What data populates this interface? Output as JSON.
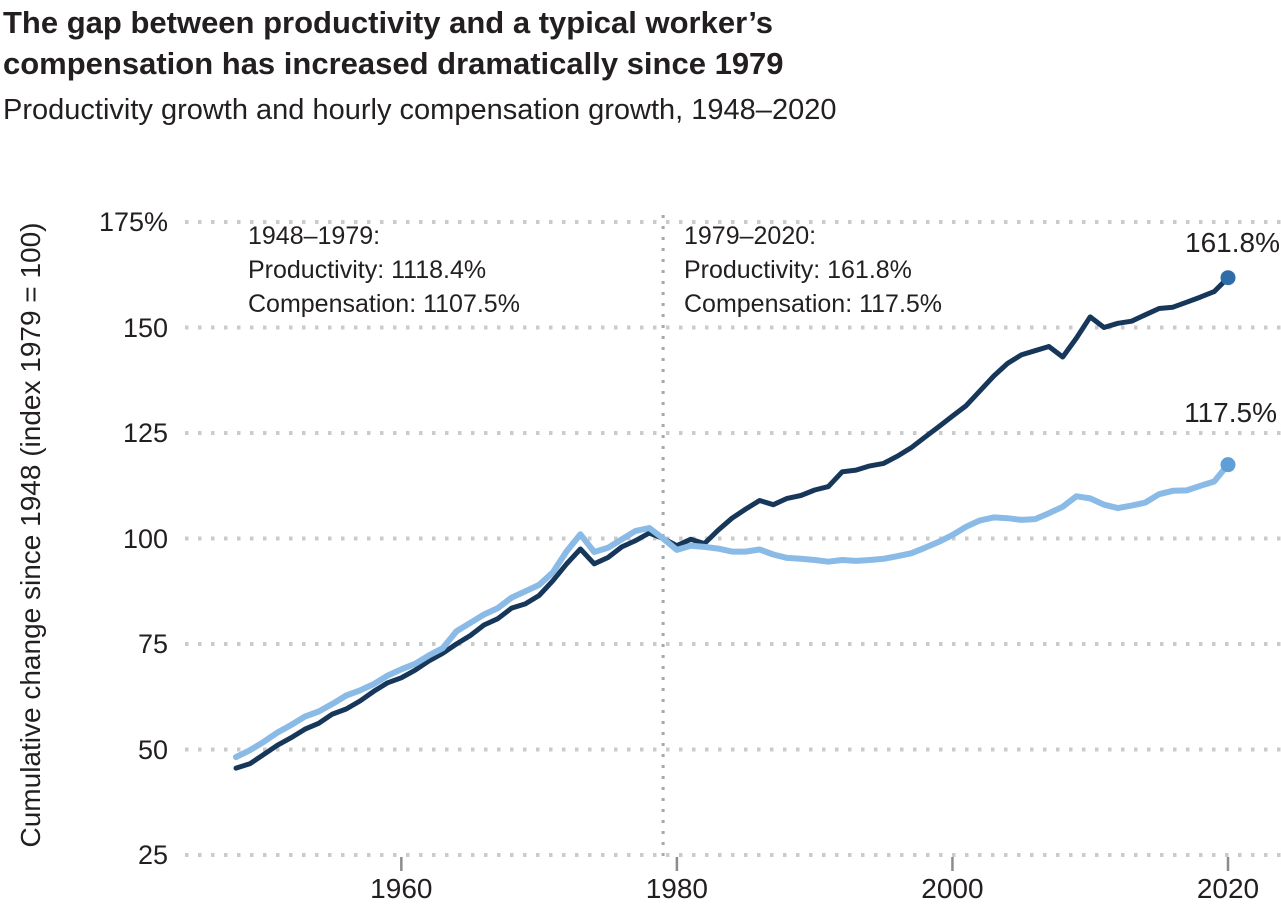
{
  "header": {
    "title_line1": "The gap between productivity and a typical worker’s",
    "title_line2": "compensation has increased dramatically since 1979",
    "subtitle": "Productivity growth and hourly compensation growth, 1948–2020"
  },
  "y_axis": {
    "title": "Cumulative change since 1948 (index 1979 = 100)",
    "ticks": [
      {
        "value": 175,
        "label": "175%"
      },
      {
        "value": 150,
        "label": "150"
      },
      {
        "value": 125,
        "label": "125"
      },
      {
        "value": 100,
        "label": "100"
      },
      {
        "value": 75,
        "label": "75"
      },
      {
        "value": 50,
        "label": "50"
      },
      {
        "value": 25,
        "label": "25"
      }
    ]
  },
  "x_axis": {
    "ticks": [
      {
        "value": 1960,
        "label": "1960"
      },
      {
        "value": 1980,
        "label": "1980"
      },
      {
        "value": 2000,
        "label": "2000"
      },
      {
        "value": 2020,
        "label": "2020"
      }
    ]
  },
  "annotations": {
    "left": {
      "period": "1948–1979:",
      "productivity": "Productivity: 1118.4%",
      "compensation": "Compensation: 1107.5%"
    },
    "right": {
      "period": "1979–2020:",
      "productivity": "Productivity: 161.8%",
      "compensation": "Compensation: 117.5%"
    }
  },
  "colors": {
    "text": "#231f20",
    "gridline": "#cbcbcb",
    "reference_line": "#a8a8a8",
    "tick_mark": "#8c8c8c",
    "productivity_line": "#16365a",
    "productivity_dot": "#2f6da9",
    "compensation_line": "#8abae6",
    "compensation_dot": "#5f9fd8"
  },
  "chart_data": {
    "type": "line",
    "title": "The gap between productivity and a typical worker’s compensation has increased dramatically since 1979",
    "subtitle": "Productivity growth and hourly compensation growth, 1948–2020",
    "ylabel": "Cumulative change since 1948 (index 1979 = 100)",
    "xlabel": "",
    "xlim": [
      1948,
      2020
    ],
    "ylim": [
      25,
      175
    ],
    "grid": "dotted horizontal",
    "legend_position": "end-of-line labels",
    "reference_line_x": 1979,
    "x": [
      1948,
      1949,
      1950,
      1951,
      1952,
      1953,
      1954,
      1955,
      1956,
      1957,
      1958,
      1959,
      1960,
      1961,
      1962,
      1963,
      1964,
      1965,
      1966,
      1967,
      1968,
      1969,
      1970,
      1971,
      1972,
      1973,
      1974,
      1975,
      1976,
      1977,
      1978,
      1979,
      1980,
      1981,
      1982,
      1983,
      1984,
      1985,
      1986,
      1987,
      1988,
      1989,
      1990,
      1991,
      1992,
      1993,
      1994,
      1995,
      1996,
      1997,
      1998,
      1999,
      2000,
      2001,
      2002,
      2003,
      2004,
      2005,
      2006,
      2007,
      2008,
      2009,
      2010,
      2011,
      2012,
      2013,
      2014,
      2015,
      2016,
      2017,
      2018,
      2019,
      2020
    ],
    "series": [
      {
        "name": "Productivity",
        "end_label": "161.8%",
        "line_width": 5,
        "values": [
          45.6,
          46.6,
          48.8,
          51.0,
          52.8,
          54.8,
          56.2,
          58.4,
          59.6,
          61.5,
          63.8,
          65.8,
          67.0,
          68.8,
          71.0,
          72.8,
          75.0,
          77.0,
          79.5,
          81.0,
          83.5,
          84.5,
          86.5,
          90.0,
          94.0,
          97.5,
          94.0,
          95.5,
          98.0,
          99.5,
          101.3,
          100.0,
          98.3,
          99.8,
          98.8,
          102.0,
          104.8,
          107.0,
          109.0,
          108.0,
          109.5,
          110.2,
          111.5,
          112.3,
          115.8,
          116.2,
          117.2,
          117.8,
          119.5,
          121.5,
          124.0,
          126.5,
          129.0,
          131.5,
          135.0,
          138.5,
          141.5,
          143.5,
          144.5,
          145.5,
          143.0,
          147.5,
          152.5,
          150.0,
          151.0,
          151.5,
          153.0,
          154.5,
          154.8,
          156.0,
          157.2,
          158.5,
          161.8
        ]
      },
      {
        "name": "Hourly compensation",
        "end_label": "117.5%",
        "line_width": 6,
        "values": [
          48.2,
          49.8,
          51.8,
          54.0,
          55.8,
          57.8,
          59.0,
          60.8,
          62.8,
          64.0,
          65.5,
          67.5,
          69.0,
          70.3,
          72.3,
          74.0,
          78.0,
          80.0,
          82.0,
          83.5,
          86.0,
          87.5,
          89.0,
          92.0,
          97.0,
          101.0,
          96.8,
          97.8,
          99.8,
          101.8,
          102.5,
          100.0,
          97.3,
          98.3,
          98.0,
          97.6,
          96.9,
          96.9,
          97.4,
          96.2,
          95.4,
          95.2,
          94.9,
          94.5,
          94.9,
          94.7,
          94.9,
          95.2,
          95.8,
          96.5,
          97.8,
          99.2,
          100.8,
          102.8,
          104.3,
          105.0,
          104.8,
          104.4,
          104.6,
          106.0,
          107.5,
          110.0,
          109.5,
          108.0,
          107.2,
          107.8,
          108.5,
          110.5,
          111.3,
          111.4,
          112.5,
          113.5,
          117.5
        ]
      }
    ]
  }
}
